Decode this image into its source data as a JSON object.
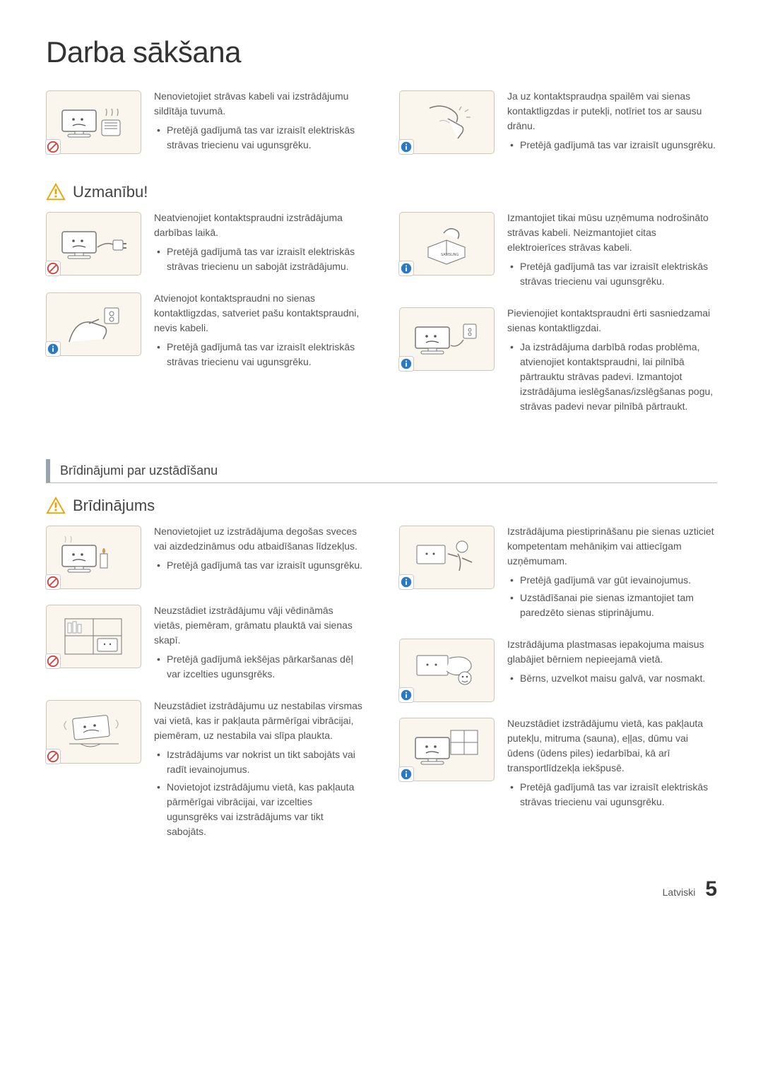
{
  "page_title": "Darba sākšana",
  "caution_label": "Uzmanību!",
  "warning_label": "Brīdinājums",
  "install_heading": "Brīdinājumi par uzstādīšanu",
  "footer_lang": "Latviski",
  "page_number": "5",
  "colors": {
    "illus_bg": "#faf5ed",
    "prohibit": "#d43f3a",
    "info": "#2b78c5",
    "warn": "#e8a400"
  },
  "section1": {
    "left": [
      {
        "intro": "Nenovietojiet strāvas kabeli vai izstrādājumu sildītāja tuvumā.",
        "bullets": [
          "Pretējā gadījumā tas var izraisīt elektriskās strāvas triecienu vai ugunsgrēku."
        ],
        "badge": "prohibit",
        "glyph": "heater"
      }
    ],
    "right": [
      {
        "intro": "Ja uz kontaktspraudņa spailēm vai sienas kontaktligzdas ir putekļi, notīriet tos ar sausu drānu.",
        "bullets": [
          "Pretējā gadījumā tas var izraisīt ugunsgrēku."
        ],
        "badge": "info",
        "glyph": "wipe"
      }
    ]
  },
  "section2": {
    "left": [
      {
        "intro": "Neatvienojiet kontaktspraudni izstrādājuma darbības laikā.",
        "bullets": [
          "Pretējā gadījumā tas var izraisīt elektriskās strāvas triecienu un sabojāt izstrādājumu."
        ],
        "badge": "prohibit",
        "glyph": "unplug"
      },
      {
        "intro": "Atvienojot kontaktspraudni no sienas kontaktligzdas, satveriet pašu kontaktspraudni, nevis kabeli.",
        "bullets": [
          "Pretējā gadījumā tas var izraisīt elektriskās strāvas triecienu vai ugunsgrēku."
        ],
        "badge": "info",
        "glyph": "handplug"
      }
    ],
    "right": [
      {
        "intro": "Izmantojiet tikai mūsu uzņēmuma nodrošināto strāvas kabeli. Neizmantojiet citas elektroierīces strāvas kabeli.",
        "bullets": [
          "Pretējā gadījumā tas var izraisīt elektriskās strāvas triecienu vai ugunsgrēku."
        ],
        "badge": "info",
        "glyph": "boxplug"
      },
      {
        "intro": "Pievienojiet kontaktspraudni ērti sasniedzamai sienas kontaktligzdai.",
        "bullets": [
          "Ja izstrādājuma darbībā rodas problēma, atvienojiet kontaktspraudni, lai pilnībā pārtrauktu strāvas padevi. Izmantojot izstrādājuma ieslēgšanas/izslēgšanas pogu, strāvas padevi nevar pilnībā pārtraukt."
        ],
        "badge": "info",
        "glyph": "monitorplug"
      }
    ]
  },
  "section3": {
    "left": [
      {
        "intro": "Nenovietojiet uz izstrādājuma degošas sveces vai aizdedzināmus odu atbaidīšanas līdzekļus.",
        "bullets": [
          "Pretējā gadījumā tas var izraisīt ugunsgrēku."
        ],
        "badge": "prohibit",
        "glyph": "candle"
      },
      {
        "intro": "Neuzstādiet izstrādājumu vāji vēdināmās vietās, piemēram, grāmatu plauktā vai sienas skapī.",
        "bullets": [
          "Pretējā gadījumā iekšējas pārkaršanas dēļ var izcelties ugunsgrēks."
        ],
        "badge": "prohibit",
        "glyph": "shelf"
      },
      {
        "intro": "Neuzstādiet izstrādājumu uz nestabilas virsmas vai vietā, kas ir pakļauta pārmērīgai vibrācijai, piemēram, uz nestabila vai slīpa plaukta.",
        "bullets": [
          "Izstrādājums var nokrist un tikt sabojāts vai radīt ievainojumus.",
          "Novietojot izstrādājumu vietā, kas pakļauta pārmērīgai vibrācijai, var izcelties ugunsgrēks vai izstrādājums var tikt sabojāts."
        ],
        "badge": "prohibit",
        "glyph": "wobble"
      }
    ],
    "right": [
      {
        "intro": "Izstrādājuma piestiprināšanu pie sienas uzticiet kompetentam mehāniķim vai attiecīgam uzņēmumam.",
        "bullets": [
          "Pretējā gadījumā var gūt ievainojumus.",
          "Uzstādīšanai pie sienas izmantojiet tam paredzēto sienas stiprinājumu."
        ],
        "badge": "info",
        "glyph": "wallmount"
      },
      {
        "intro": "Izstrādājuma plastmasas iepakojuma maisus glabājiet bērniem nepieejamā vietā.",
        "bullets": [
          "Bērns, uzvelkot maisu galvā, var nosmakt."
        ],
        "badge": "info",
        "glyph": "child"
      },
      {
        "intro": "Neuzstādiet izstrādājumu vietā, kas pakļauta putekļu, mitruma (sauna), eļļas, dūmu vai ūdens (ūdens piles) iedarbībai, kā arī transportlīdzekļa iekšpusē.",
        "bullets": [
          "Pretējā gadījumā tas var izraisīt elektriskās strāvas triecienu vai ugunsgrēku."
        ],
        "badge": "info",
        "glyph": "window"
      }
    ]
  }
}
